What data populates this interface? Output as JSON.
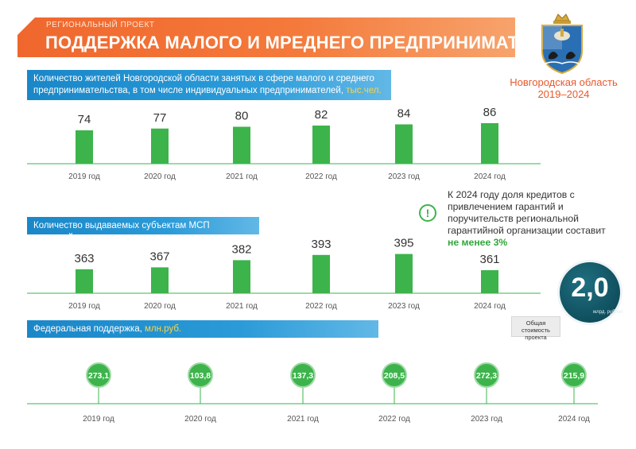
{
  "header": {
    "kicker": "РЕГИОНАЛЬНЫЙ ПРОЕКТ",
    "title": "ПОДДЕРЖКА МАЛОГО И МРЕДНЕГО ПРЕДПРИНИМАТЕЛЬСТВА"
  },
  "region": {
    "name": "Новгородская область",
    "years": "2019–2024"
  },
  "colors": {
    "accent_orange": "#f0672d",
    "bar_blue": "#1a87c8",
    "bar_green": "#3cb44b",
    "dark_teal": "#0f4f5e",
    "unit_yellow": "#f9d34a"
  },
  "section1": {
    "label": "Количество жителей Новгородской области занятых в сфере малого и среднего предпринимательства, в том числе индивидуальных предпринимателей,",
    "unit": "тыс.чел."
  },
  "section2": {
    "label": "Количество выдаваемых субъектам МСП микрозаймов"
  },
  "section3": {
    "label": "Федеральная поддержка,",
    "unit": "млн.руб."
  },
  "note": {
    "icon": "exclamation-icon",
    "text": "К 2024 году доля кредитов с привлечением гарантий и поручительств региональной гарантийной организации составит",
    "highlight": "не менее 3%"
  },
  "total": {
    "value": "2,0",
    "unit": "млрд. рублей",
    "caption": "Общая стоимость проекта"
  },
  "chart_data": [
    {
      "type": "bar",
      "categories": [
        "2019 год",
        "2020 год",
        "2021 год",
        "2022 год",
        "2023 год",
        "2024 год"
      ],
      "values": [
        74,
        77,
        80,
        82,
        84,
        86
      ],
      "labels": [
        "74",
        "77",
        "80",
        "82",
        "84",
        "86"
      ],
      "title": "Количество жителей Новгородской области занятых в сфере малого и среднего предпринимательства, в том числе индивидуальных предпринимателей, тыс.чел."
    },
    {
      "type": "bar",
      "categories": [
        "2019 год",
        "2020 год",
        "2021 год",
        "2022 год",
        "2023 год",
        "2024 год"
      ],
      "values": [
        363,
        367,
        382,
        393,
        395,
        361
      ],
      "labels": [
        "363",
        "367",
        "382",
        "393",
        "395",
        "361"
      ],
      "title": "Количество выдаваемых субъектам МСП микрозаймов"
    },
    {
      "type": "scatter",
      "categories": [
        "2019 год",
        "2020 год",
        "2021 год",
        "2022 год",
        "2023 год",
        "2024 год"
      ],
      "values": [
        273.1,
        103.8,
        137.3,
        208.5,
        272.3,
        215.9
      ],
      "labels": [
        "273,1",
        "103,8",
        "137,3",
        "208,5",
        "272,3",
        "215,9"
      ],
      "title": "Федеральная поддержка, млн.руб."
    }
  ]
}
